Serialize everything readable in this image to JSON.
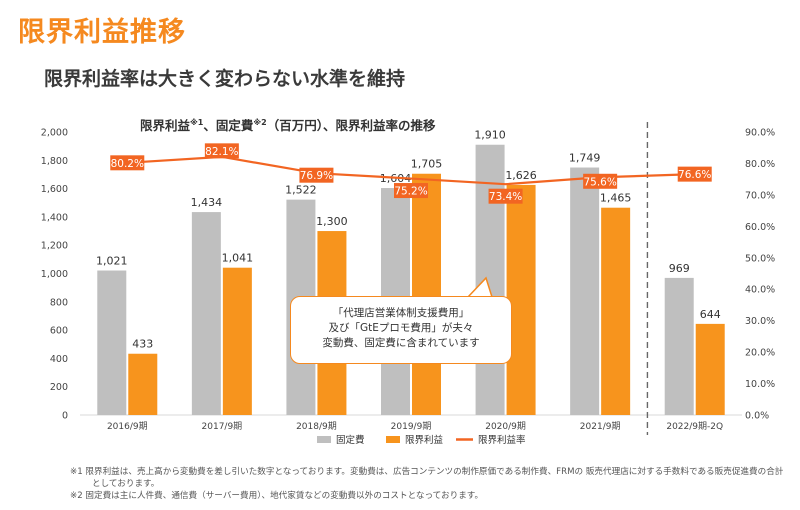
{
  "page": {
    "title": "限界利益推移",
    "subtitle": "限界利益率は大きく変わらない水準を維持",
    "chart_title_main": "限界利益",
    "chart_title_note1": "※1",
    "chart_title_mid": "、固定費",
    "chart_title_note2": "※2",
    "chart_title_end": "（百万円）、限界利益率の推移"
  },
  "callout": {
    "line1": "「代理店営業体制支援費用」",
    "line2": "及び「GtEプロモ費用」が夫々",
    "line3": "変動費、固定費に含まれています"
  },
  "footnotes": {
    "note1_line1": "※1 限界利益は、売上高から変動費を差し引いた数字となっております。変動費は、広告コンテンツの制作原価である制作費、FRMの 販売代理店に対する手数料である販売促進費の合計",
    "note1_line2": "としております。",
    "note2": "※2 固定費は主に人件費、通信費（サーバー費用）、地代家賃などの変動費以外のコストとなっております。"
  },
  "colors": {
    "accent": "#f5891f",
    "fixed_bar": "#bfbfbf",
    "margin_bar": "#f7941d",
    "rate_line": "#f26522"
  },
  "chart_data": {
    "type": "bar",
    "categories": [
      "2016/9期",
      "2017/9期",
      "2018/9期",
      "2019/9期",
      "2020/9期",
      "2021/9期",
      "2022/9期-2Q"
    ],
    "series": [
      {
        "name": "固定費",
        "type": "bar",
        "values": [
          1021,
          1434,
          1522,
          1604,
          1910,
          1749,
          969
        ],
        "labels": [
          "1,021",
          "1,434",
          "1,522",
          "1,604",
          "1,910",
          "1,749",
          "969"
        ]
      },
      {
        "name": "限界利益",
        "type": "bar",
        "values": [
          433,
          1041,
          1300,
          1705,
          1626,
          1465,
          644
        ],
        "labels": [
          "433",
          "1,041",
          "1,300",
          "1,705",
          "1,626",
          "1,465",
          "644"
        ]
      },
      {
        "name": "限界利益率",
        "type": "line",
        "axis": "right",
        "values": [
          80.2,
          82.1,
          76.9,
          75.2,
          73.4,
          75.6,
          76.6
        ],
        "labels": [
          "80.2%",
          "82.1%",
          "76.9%",
          "75.2%",
          "73.4%",
          "75.6%",
          "76.6%"
        ]
      }
    ],
    "ylim": [
      0,
      2000
    ],
    "yticks": [
      "0",
      "200",
      "400",
      "600",
      "800",
      "1,000",
      "1,200",
      "1,400",
      "1,600",
      "1,800",
      "2,000"
    ],
    "y2lim": [
      0,
      90
    ],
    "y2ticks": [
      "0.0%",
      "10.0%",
      "20.0%",
      "30.0%",
      "40.0%",
      "50.0%",
      "60.0%",
      "70.0%",
      "80.0%",
      "90.0%"
    ],
    "grid": false,
    "legend": "bottom-center",
    "divider": "dashed line between 2021/9期 and 2022/9期-2Q"
  }
}
